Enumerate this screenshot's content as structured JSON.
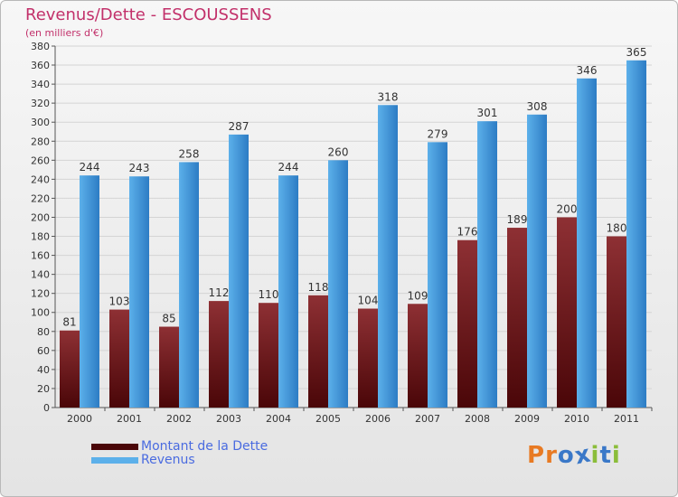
{
  "title": "Revenus/Dette - ESCOUSSENS",
  "subtitle": "(en milliers d'€)",
  "colors": {
    "title": "#c2306a",
    "debt_top": "#8e3034",
    "debt_bottom": "#4a0608",
    "revenue_top": "#5cb0ea",
    "revenue_bottom": "#2d7cc4",
    "grid": "#d4d4d4",
    "legend_text": "#4a6be0"
  },
  "legend": {
    "debt_label": "Montant de la Dette",
    "revenue_label": "Revenus"
  },
  "brand": {
    "text": "Proxiti",
    "letter_colors": [
      "#e87a23",
      "#e87a23",
      "#3a78c8",
      "#3a78c8",
      "#8bbd3a",
      "#3a78c8",
      "#8bbd3a"
    ]
  },
  "chart_data": {
    "type": "bar",
    "categories": [
      "2000",
      "2001",
      "2002",
      "2003",
      "2004",
      "2005",
      "2006",
      "2007",
      "2008",
      "2009",
      "2010",
      "2011"
    ],
    "series": [
      {
        "name": "Montant de la Dette",
        "values": [
          81,
          103,
          85,
          112,
          110,
          118,
          104,
          109,
          176,
          189,
          200,
          180
        ]
      },
      {
        "name": "Revenus",
        "values": [
          244,
          243,
          258,
          287,
          244,
          260,
          318,
          279,
          301,
          308,
          346,
          365
        ]
      }
    ],
    "ylim": [
      0,
      380
    ],
    "ytick_step": 20,
    "grid": true,
    "legend_position": "bottom-left"
  }
}
